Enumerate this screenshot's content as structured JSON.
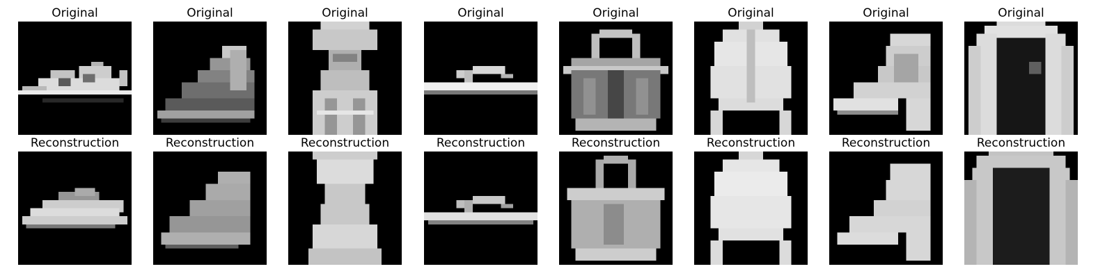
{
  "rows": [
    {
      "label": "Original",
      "items": [
        {
          "title": "Original",
          "item": "sandal"
        },
        {
          "title": "Original",
          "item": "sneaker"
        },
        {
          "title": "Original",
          "item": "dress"
        },
        {
          "title": "Original",
          "item": "flip-flop"
        },
        {
          "title": "Original",
          "item": "bag"
        },
        {
          "title": "Original",
          "item": "shirt"
        },
        {
          "title": "Original",
          "item": "ankle-boot"
        },
        {
          "title": "Original",
          "item": "pullover"
        }
      ]
    },
    {
      "label": "Reconstruction",
      "items": [
        {
          "title": "Reconstruction",
          "item": "sandal"
        },
        {
          "title": "Reconstruction",
          "item": "sneaker"
        },
        {
          "title": "Reconstruction",
          "item": "dress"
        },
        {
          "title": "Reconstruction",
          "item": "flip-flop"
        },
        {
          "title": "Reconstruction",
          "item": "bag"
        },
        {
          "title": "Reconstruction",
          "item": "shirt"
        },
        {
          "title": "Reconstruction",
          "item": "ankle-boot"
        },
        {
          "title": "Reconstruction",
          "item": "pullover"
        }
      ]
    }
  ],
  "colors": {
    "background": "#ffffff",
    "image_background": "#000000",
    "text": "#000000"
  }
}
